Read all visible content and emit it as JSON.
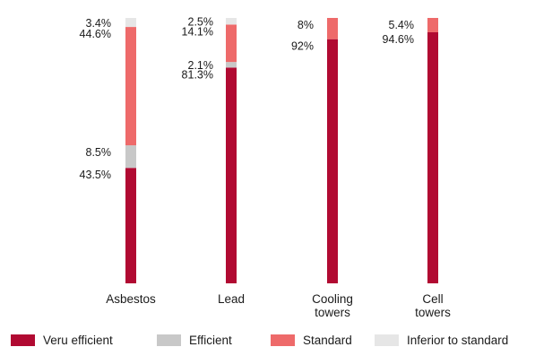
{
  "chart_data": {
    "type": "bar",
    "stacked": true,
    "categories": [
      "Asbestos",
      "Lead",
      "Cooling towers",
      "Cell towers"
    ],
    "series": [
      {
        "name": "Veru efficient",
        "color": "#b10a32",
        "values": [
          43.5,
          81.3,
          92,
          94.6
        ]
      },
      {
        "name": "Efficient",
        "color": "#c8c8c8",
        "values": [
          8.5,
          2.1,
          0,
          0
        ]
      },
      {
        "name": "Standard",
        "color": "#ee6a6a",
        "values": [
          44.6,
          14.1,
          8,
          5.4
        ]
      },
      {
        "name": "Inferior to standard",
        "color": "#e6e6e6",
        "values": [
          3.4,
          2.5,
          0,
          0
        ]
      }
    ],
    "data_labels": [
      [
        "43.5%",
        "8.5%",
        "44.6%",
        "3.4%"
      ],
      [
        "81.3%",
        "2.1%",
        "14.1%",
        "2.5%"
      ],
      [
        "92%",
        "",
        "8%",
        ""
      ],
      [
        "94.6%",
        "",
        "5.4%",
        ""
      ]
    ],
    "ylim": [
      0,
      100
    ],
    "grid": false,
    "legend_position": "bottom"
  }
}
